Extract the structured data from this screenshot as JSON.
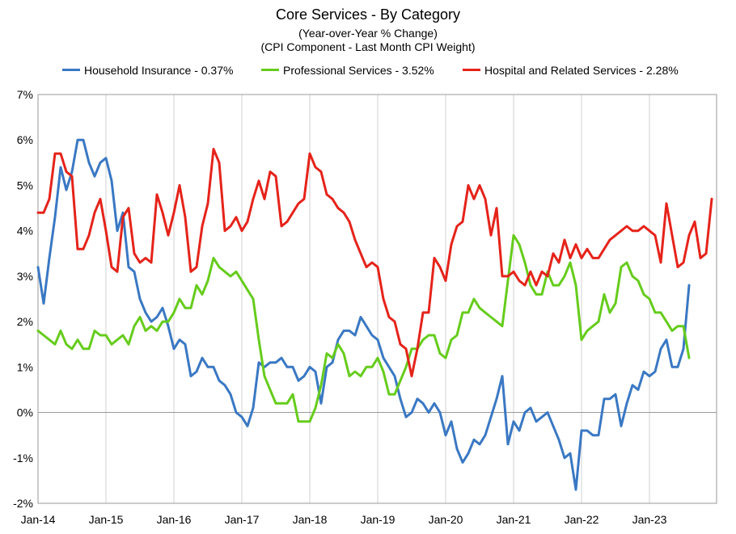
{
  "chart_data": {
    "type": "line",
    "title": "Core Services  - By Category",
    "subtitle_1": "(Year-over-Year % Change)",
    "subtitle_2": "(CPI Component - Last Month CPI Weight)",
    "legend_position": "top",
    "ylim": [
      -2,
      7
    ],
    "y_ticks": [
      "7%",
      "6%",
      "5%",
      "4%",
      "3%",
      "2%",
      "1%",
      "0%",
      "-1%",
      "-2%"
    ],
    "x_ticks": [
      "Jan-14",
      "Jan-15",
      "Jan-16",
      "Jan-17",
      "Jan-18",
      "Jan-19",
      "Jan-20",
      "Jan-21",
      "Jan-22",
      "Jan-23"
    ],
    "x_start": "Jan-14",
    "grid": "vertical lines at each year, no horizontal gridlines",
    "series": [
      {
        "name": "Household Insurance - 0.37%",
        "color": "#3a78c3",
        "values": [
          3.2,
          2.4,
          3.4,
          4.3,
          5.4,
          4.9,
          5.3,
          6.0,
          6.0,
          5.5,
          5.2,
          5.5,
          5.6,
          5.1,
          4.0,
          4.4,
          3.2,
          3.1,
          2.5,
          2.2,
          2.0,
          2.1,
          2.3,
          1.9,
          1.4,
          1.6,
          1.5,
          0.8,
          0.9,
          1.2,
          1.0,
          1.0,
          0.7,
          0.6,
          0.4,
          0.0,
          -0.1,
          -0.3,
          0.1,
          1.1,
          1.0,
          1.1,
          1.1,
          1.2,
          1.0,
          1.0,
          0.7,
          0.8,
          1.0,
          0.9,
          0.2,
          1.0,
          1.1,
          1.6,
          1.8,
          1.8,
          1.7,
          2.1,
          1.9,
          1.7,
          1.6,
          1.2,
          1.0,
          0.8,
          0.3,
          -0.1,
          0.0,
          0.3,
          0.2,
          0.0,
          0.2,
          0.0,
          -0.5,
          -0.2,
          -0.8,
          -1.1,
          -0.9,
          -0.6,
          -0.7,
          -0.5,
          -0.1,
          0.3,
          0.8,
          -0.7,
          -0.2,
          -0.4,
          0.0,
          0.1,
          -0.2,
          -0.1,
          0.0,
          -0.3,
          -0.6,
          -1.0,
          -0.9,
          -1.7,
          -0.4,
          -0.4,
          -0.5,
          -0.5,
          0.3,
          0.3,
          0.4,
          -0.3,
          0.2,
          0.6,
          0.5,
          0.9,
          0.8,
          0.9,
          1.4,
          1.6,
          1.0,
          1.0,
          1.4,
          2.8
        ]
      },
      {
        "name": "Professional Services - 3.52%",
        "color": "#66cc1c",
        "values": [
          1.8,
          1.7,
          1.6,
          1.5,
          1.8,
          1.5,
          1.4,
          1.6,
          1.4,
          1.4,
          1.8,
          1.7,
          1.7,
          1.5,
          1.6,
          1.7,
          1.5,
          1.9,
          2.1,
          1.8,
          1.9,
          1.8,
          2.0,
          2.0,
          2.2,
          2.5,
          2.3,
          2.3,
          2.8,
          2.6,
          2.9,
          3.4,
          3.2,
          3.1,
          3.0,
          3.1,
          2.9,
          2.7,
          2.5,
          1.6,
          0.8,
          0.5,
          0.2,
          0.2,
          0.2,
          0.4,
          -0.2,
          -0.2,
          -0.2,
          0.1,
          0.6,
          1.3,
          1.2,
          1.5,
          1.3,
          0.8,
          0.9,
          0.8,
          1.0,
          1.0,
          1.2,
          0.9,
          0.4,
          0.4,
          0.7,
          1.0,
          1.4,
          1.4,
          1.6,
          1.7,
          1.7,
          1.3,
          1.2,
          1.6,
          1.7,
          2.2,
          2.2,
          2.5,
          2.3,
          2.2,
          2.1,
          2.0,
          1.9,
          2.9,
          3.9,
          3.7,
          3.3,
          2.8,
          2.6,
          2.6,
          3.1,
          2.8,
          2.8,
          3.0,
          3.3,
          2.8,
          1.6,
          1.8,
          1.9,
          2.0,
          2.6,
          2.2,
          2.4,
          3.2,
          3.3,
          3.0,
          2.9,
          2.6,
          2.5,
          2.2,
          2.2,
          2.0,
          1.8,
          1.9,
          1.9,
          1.2
        ]
      },
      {
        "name": "Hospital and Related Services - 2.28%",
        "color": "#e5231a",
        "values": [
          4.4,
          4.4,
          4.7,
          5.7,
          5.7,
          5.3,
          5.2,
          3.6,
          3.6,
          3.9,
          4.4,
          4.7,
          4.0,
          3.2,
          3.1,
          4.3,
          4.5,
          3.5,
          3.3,
          3.4,
          3.3,
          4.8,
          4.4,
          3.9,
          4.4,
          5.0,
          4.3,
          3.1,
          3.2,
          4.1,
          4.6,
          5.8,
          5.5,
          4.0,
          4.1,
          4.3,
          4.0,
          4.2,
          4.7,
          5.1,
          4.7,
          5.3,
          5.2,
          4.1,
          4.2,
          4.4,
          4.6,
          4.7,
          5.7,
          5.4,
          5.3,
          4.8,
          4.7,
          4.5,
          4.4,
          4.2,
          3.8,
          3.5,
          3.2,
          3.3,
          3.2,
          2.5,
          2.1,
          2.0,
          1.5,
          1.4,
          0.8,
          1.4,
          2.2,
          2.2,
          3.4,
          3.2,
          2.9,
          3.7,
          4.1,
          4.2,
          5.0,
          4.7,
          5.0,
          4.7,
          3.9,
          4.5,
          3.0,
          3.0,
          3.1,
          2.9,
          2.8,
          3.1,
          2.8,
          3.1,
          3.0,
          3.5,
          3.3,
          3.8,
          3.4,
          3.7,
          3.4,
          3.6,
          3.4,
          3.4,
          3.6,
          3.8,
          3.9,
          4.0,
          4.1,
          4.0,
          4.0,
          4.1,
          4.0,
          3.9,
          3.3,
          4.6,
          3.9,
          3.2,
          3.3,
          3.9,
          4.2,
          3.4,
          3.5,
          4.7
        ]
      }
    ]
  }
}
